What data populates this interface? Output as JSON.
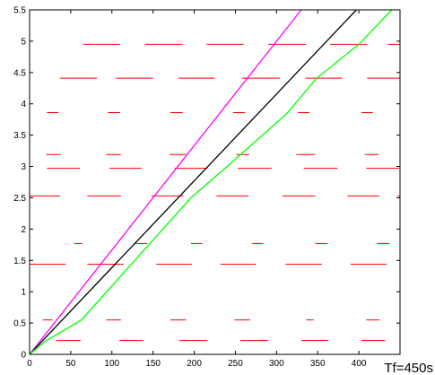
{
  "chart_data": {
    "type": "line",
    "annotation": "Tf=450s",
    "xlim": [
      0,
      450
    ],
    "ylim": [
      0,
      5.5
    ],
    "xticks": [
      0,
      50,
      100,
      150,
      200,
      250,
      300,
      350,
      400
    ],
    "yticks": [
      0,
      0.5,
      1,
      1.5,
      2,
      2.5,
      3,
      3.5,
      4,
      4.5,
      5,
      5.5
    ],
    "grid": false,
    "series": [
      {
        "color": "#ff00ff",
        "x": [
          0,
          330
        ],
        "y": [
          0,
          5.5
        ]
      },
      {
        "color": "#000000",
        "x": [
          0,
          397
        ],
        "y": [
          0,
          5.5
        ]
      },
      {
        "color": "#00ff00",
        "x": [
          0,
          18,
          63,
          196,
          240,
          313,
          348,
          400,
          440
        ],
        "y": [
          0,
          0.2,
          0.55,
          2.5,
          3.0,
          3.85,
          4.4,
          4.95,
          5.5
        ]
      }
    ],
    "segments": {
      "color": "#ff0000",
      "items": [
        [
          32,
          62,
          0.22
        ],
        [
          109,
          138,
          0.22
        ],
        [
          182,
          216,
          0.22
        ],
        [
          256,
          290,
          0.22
        ],
        [
          330,
          363,
          0.22
        ],
        [
          403,
          432,
          0.22
        ],
        [
          16,
          28,
          0.55
        ],
        [
          93,
          111,
          0.55
        ],
        [
          171,
          190,
          0.55
        ],
        [
          249,
          268,
          0.55
        ],
        [
          336,
          345,
          0.55
        ],
        [
          409,
          425,
          0.55
        ],
        [
          0,
          44,
          1.44
        ],
        [
          70,
          114,
          1.44
        ],
        [
          154,
          197,
          1.44
        ],
        [
          232,
          275,
          1.44
        ],
        [
          311,
          355,
          1.44
        ],
        [
          390,
          434,
          1.44
        ],
        [
          54,
          64,
          1.77
        ],
        [
          127,
          143,
          1.77
        ],
        [
          196,
          210,
          1.77
        ],
        [
          270,
          284,
          1.77
        ],
        [
          347,
          362,
          1.77
        ],
        [
          422,
          437,
          1.77
        ],
        [
          0,
          37,
          2.53
        ],
        [
          70,
          111,
          2.53
        ],
        [
          148,
          187,
          2.53
        ],
        [
          227,
          266,
          2.53
        ],
        [
          307,
          347,
          2.53
        ],
        [
          386,
          425,
          2.53
        ],
        [
          447,
          450,
          2.53
        ],
        [
          21,
          61,
          2.97
        ],
        [
          97,
          136,
          2.97
        ],
        [
          176,
          216,
          2.97
        ],
        [
          253,
          294,
          2.97
        ],
        [
          333,
          374,
          2.97
        ],
        [
          409,
          449,
          2.97
        ],
        [
          20,
          38,
          3.19
        ],
        [
          93,
          111,
          3.19
        ],
        [
          170,
          190,
          3.19
        ],
        [
          251,
          267,
          3.19
        ],
        [
          324,
          347,
          3.19
        ],
        [
          407,
          424,
          3.19
        ],
        [
          21,
          35,
          3.86
        ],
        [
          95,
          110,
          3.86
        ],
        [
          171,
          186,
          3.86
        ],
        [
          247,
          262,
          3.86
        ],
        [
          326,
          340,
          3.86
        ],
        [
          403,
          417,
          3.86
        ],
        [
          37,
          82,
          4.41
        ],
        [
          105,
          150,
          4.41
        ],
        [
          181,
          225,
          4.41
        ],
        [
          258,
          304,
          4.41
        ],
        [
          335,
          380,
          4.41
        ],
        [
          410,
          450,
          4.41
        ],
        [
          65,
          110,
          4.95
        ],
        [
          140,
          186,
          4.95
        ],
        [
          215,
          260,
          4.95
        ],
        [
          290,
          336,
          4.95
        ],
        [
          365,
          410,
          4.95
        ],
        [
          435,
          450,
          4.95
        ]
      ]
    }
  }
}
